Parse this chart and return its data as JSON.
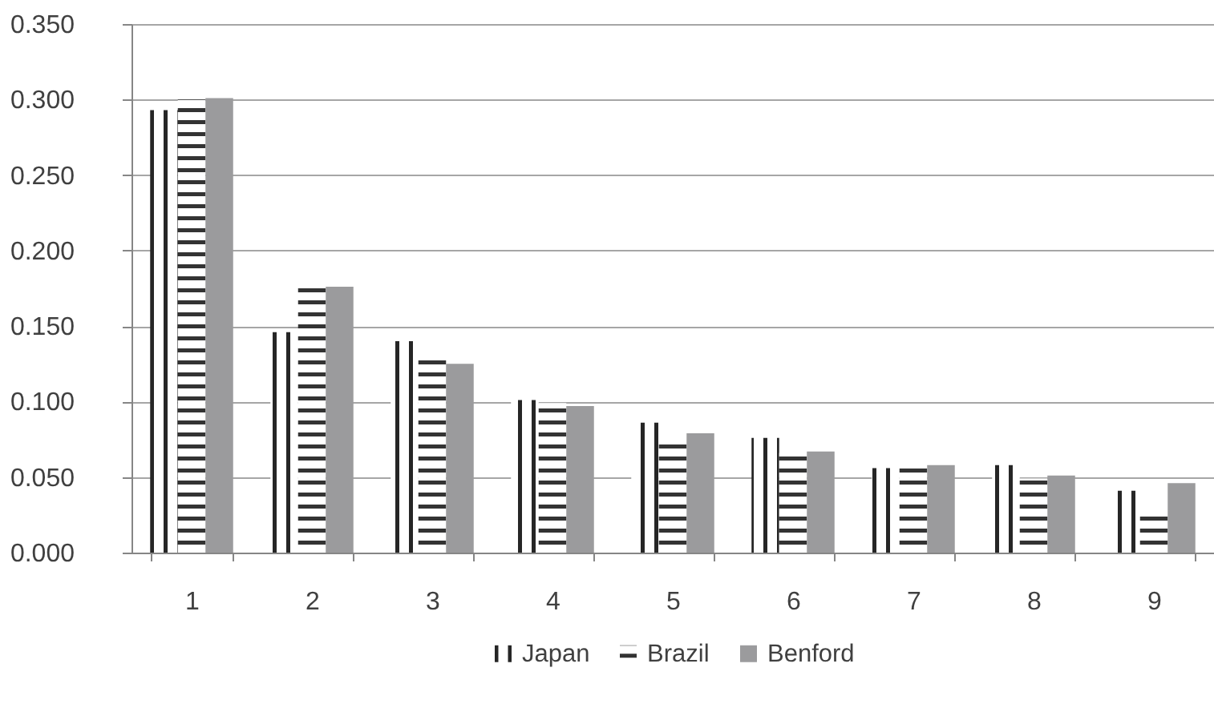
{
  "chart_data": {
    "type": "bar",
    "categories": [
      "1",
      "2",
      "3",
      "4",
      "5",
      "6",
      "7",
      "8",
      "9"
    ],
    "series": [
      {
        "name": "Japan",
        "color": "#262626",
        "values": [
          0.293,
          0.146,
          0.14,
          0.101,
          0.086,
          0.076,
          0.056,
          0.058,
          0.041
        ]
      },
      {
        "name": "Brazil",
        "color": "#333333",
        "values": [
          0.3,
          0.179,
          0.13,
          0.099,
          0.074,
          0.066,
          0.056,
          0.049,
          0.024
        ]
      },
      {
        "name": "Benford",
        "color": "#9b9b9d",
        "values": [
          0.301,
          0.176,
          0.125,
          0.097,
          0.079,
          0.067,
          0.058,
          0.051,
          0.046
        ]
      }
    ],
    "ylim": [
      0,
      0.35
    ],
    "yticks": [
      {
        "value": 0,
        "label": "0.000"
      },
      {
        "value": 0.05,
        "label": "0.050"
      },
      {
        "value": 0.1,
        "label": "0.100"
      },
      {
        "value": 0.15,
        "label": "0.150"
      },
      {
        "value": 0.2,
        "label": "0.200"
      },
      {
        "value": 0.25,
        "label": "0.250"
      },
      {
        "value": 0.3,
        "label": "0.300"
      },
      {
        "value": 0.35,
        "label": "0.350"
      }
    ],
    "grid": "y",
    "legend": "bottom"
  }
}
